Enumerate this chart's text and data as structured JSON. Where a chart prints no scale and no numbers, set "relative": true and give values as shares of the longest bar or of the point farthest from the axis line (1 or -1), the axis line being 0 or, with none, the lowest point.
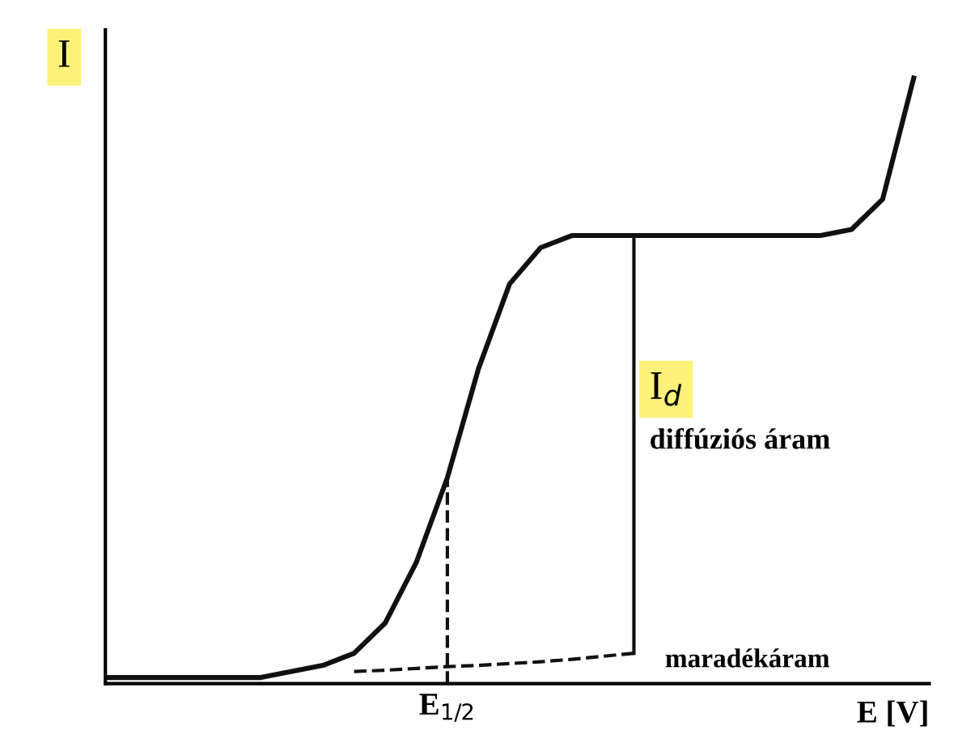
{
  "chart_data": {
    "type": "line",
    "relative": true,
    "xlabel": "E [V]",
    "ylabel": "I",
    "categories": [
      null,
      null,
      null,
      null,
      null,
      null,
      null,
      null,
      null,
      null,
      null,
      null,
      null,
      null,
      null,
      null,
      null,
      null,
      null,
      null,
      null,
      null,
      null,
      null,
      null,
      null,
      null
    ],
    "series": [
      {
        "color": "#111111",
        "line_style": "solid",
        "values": [
          0.01,
          0.01,
          0.01,
          0.01,
          0.01,
          0.01,
          0.02,
          0.03,
          0.05,
          0.1,
          0.2,
          0.34,
          0.52,
          0.66,
          0.72,
          0.74,
          0.74,
          0.74,
          0.74,
          0.74,
          0.74,
          0.74,
          0.74,
          0.74,
          0.75,
          0.8,
          1.0
        ]
      },
      {
        "color": "#111111",
        "line_style": "dashed",
        "values": [
          null,
          null,
          null,
          null,
          null,
          null,
          null,
          null,
          0.02,
          0.022,
          0.025,
          0.028,
          0.03,
          0.033,
          0.036,
          0.04,
          0.045,
          0.05,
          null,
          null,
          null,
          null,
          null,
          null,
          null,
          null,
          null
        ]
      }
    ],
    "annotations": [
      "E$_{1/2}$",
      "I$_{d}$",
      "diffúziós áram",
      "maradékáram"
    ],
    "grid": false,
    "legend": false
  }
}
